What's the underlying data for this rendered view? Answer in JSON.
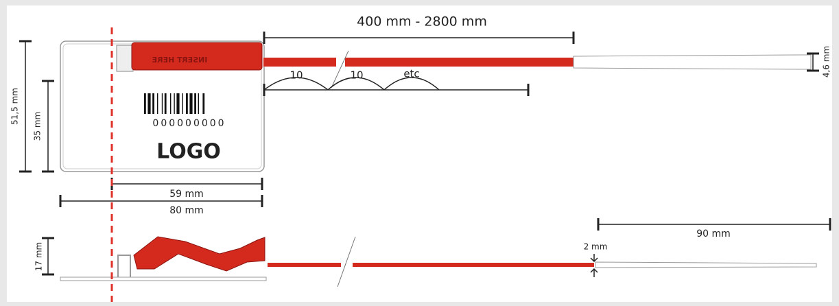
{
  "top_view": {
    "length_range": "400 mm - 2800 mm",
    "pitch_1": "10",
    "pitch_2": "10",
    "pitch_more": "etc",
    "strap_width": "4,6 mm",
    "total_height": "51,5 mm",
    "label_height": "35 mm",
    "lock_text": "INSERT HERE",
    "barcode_number": "000000000",
    "logo": "LOGO",
    "label_width": "59 mm",
    "total_width": "80 mm"
  },
  "side_view": {
    "height": "17 mm",
    "strap_thickness": "2 mm",
    "tail_length": "90 mm"
  }
}
